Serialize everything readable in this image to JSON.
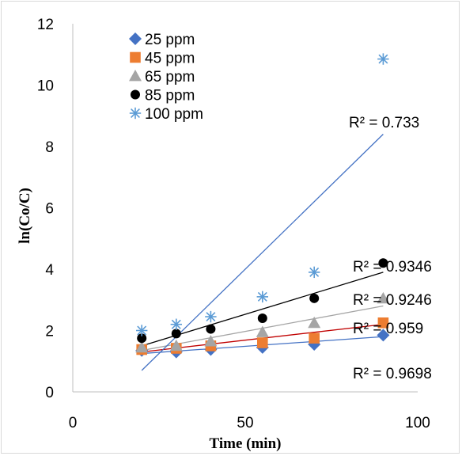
{
  "chart_data": {
    "type": "scatter",
    "xlabel": "Time (min)",
    "ylabel": "ln(Co/C)",
    "xlim": [
      0,
      100
    ],
    "ylim": [
      0,
      12
    ],
    "x_ticks": [
      "0",
      "50",
      "100"
    ],
    "y_ticks": [
      "0",
      "2",
      "4",
      "6",
      "8",
      "10",
      "12"
    ],
    "grid": false,
    "legend_position": "top-left",
    "series": [
      {
        "name": "25 ppm",
        "marker": "diamond",
        "color": "#4472C4",
        "line_color": "#4472C4",
        "x": [
          20,
          30,
          40,
          55,
          70,
          90
        ],
        "y": [
          1.35,
          1.3,
          1.38,
          1.45,
          1.55,
          1.85
        ],
        "trend": [
          [
            20,
            1.25
          ],
          [
            90,
            1.8
          ]
        ],
        "r2": "R² = 0.9698"
      },
      {
        "name": "45 ppm",
        "marker": "square",
        "color": "#ED7D31",
        "line_color": "#C00000",
        "x": [
          20,
          30,
          40,
          55,
          70,
          90
        ],
        "y": [
          1.38,
          1.42,
          1.5,
          1.6,
          1.75,
          2.25
        ],
        "trend": [
          [
            20,
            1.3
          ],
          [
            90,
            2.2
          ]
        ],
        "r2": "R² = 0.959"
      },
      {
        "name": "65 ppm",
        "marker": "triangle",
        "color": "#A5A5A5",
        "line_color": "#A5A5A5",
        "x": [
          20,
          30,
          40,
          55,
          70,
          90
        ],
        "y": [
          1.45,
          1.5,
          1.65,
          1.95,
          2.25,
          3.05
        ],
        "trend": [
          [
            20,
            1.35
          ],
          [
            90,
            2.8
          ]
        ],
        "r2": "R² = 0.9246"
      },
      {
        "name": "85 ppm",
        "marker": "circle",
        "color": "#000000",
        "line_color": "#000000",
        "x": [
          20,
          30,
          40,
          55,
          70,
          90
        ],
        "y": [
          1.75,
          1.9,
          2.05,
          2.4,
          3.05,
          4.2
        ],
        "trend": [
          [
            20,
            1.5
          ],
          [
            90,
            3.9
          ]
        ],
        "r2": "R² = 0.9346"
      },
      {
        "name": "100 ppm",
        "marker": "star",
        "color": "#5B9BD5",
        "line_color": "#4472C4",
        "x": [
          20,
          30,
          40,
          55,
          70,
          90
        ],
        "y": [
          2.0,
          2.2,
          2.45,
          3.1,
          3.9,
          10.85
        ],
        "trend": [
          [
            20,
            0.7
          ],
          [
            90,
            8.4
          ]
        ],
        "r2": "R² = 0.733"
      }
    ]
  }
}
